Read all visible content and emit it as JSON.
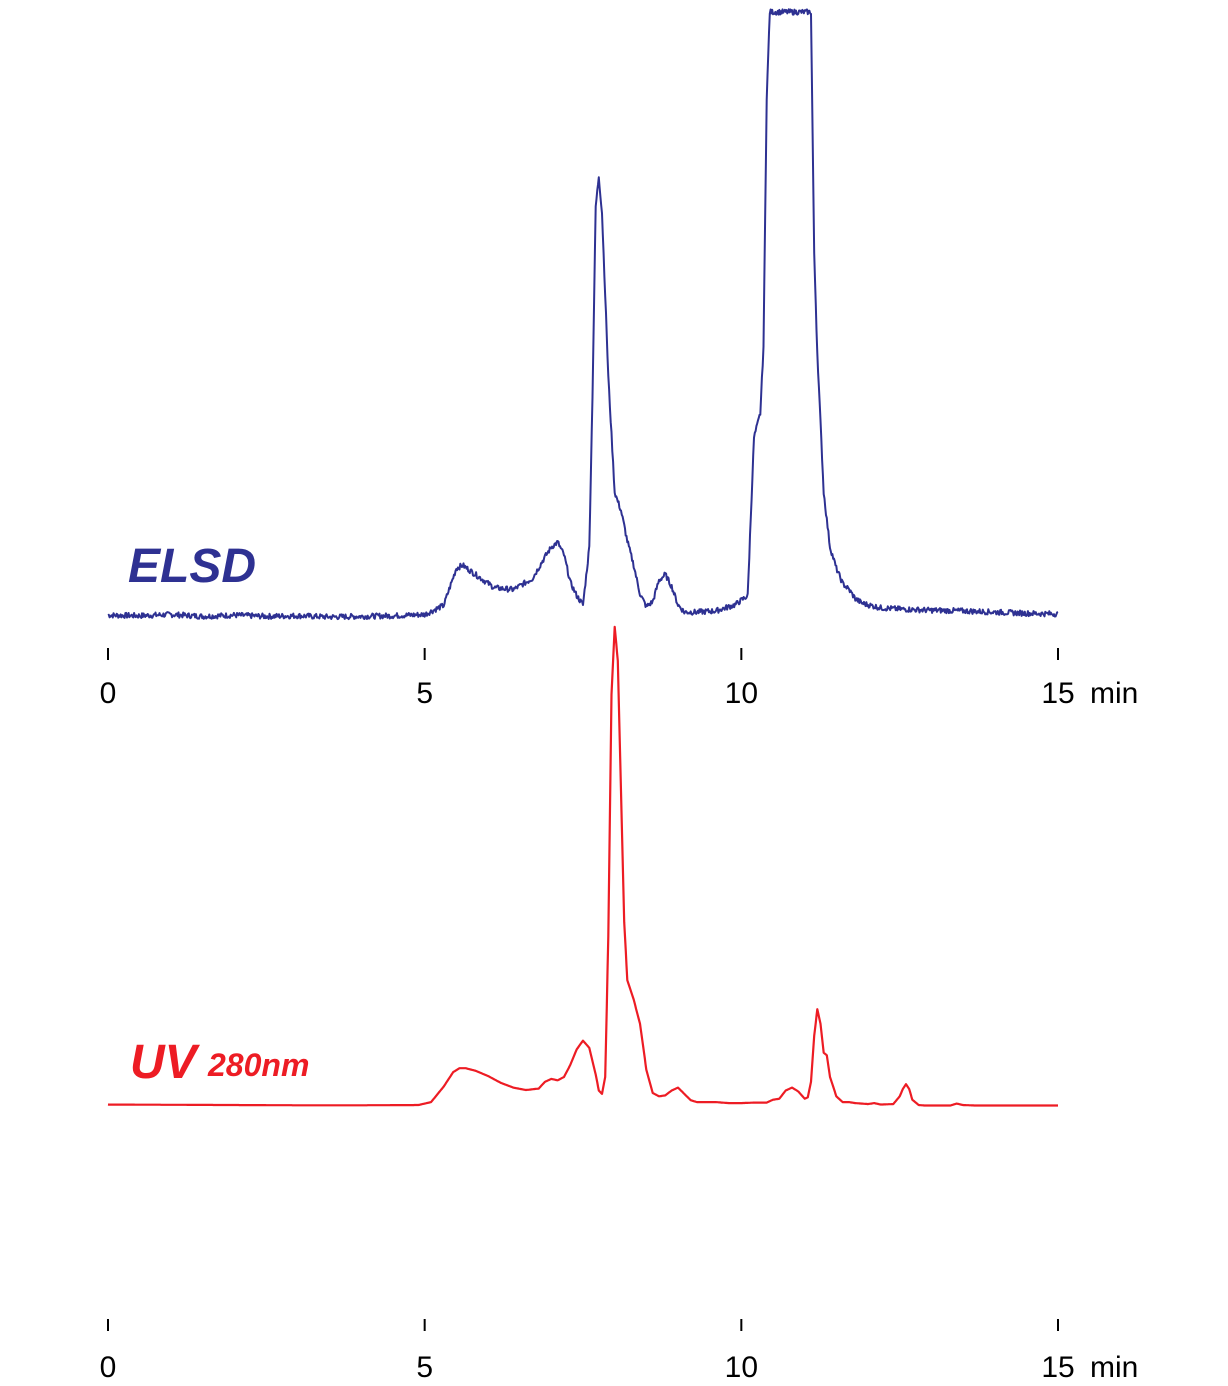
{
  "chart_data": [
    {
      "type": "line",
      "series": [
        {
          "name": "ELSD",
          "color": "#2e3192",
          "x": [
            0,
            0.5,
            1,
            1.5,
            2,
            2.5,
            3,
            3.5,
            4,
            4.5,
            5,
            5.3,
            5.5,
            5.6,
            5.8,
            6.1,
            6.4,
            6.7,
            6.9,
            7.0,
            7.1,
            7.2,
            7.3,
            7.4,
            7.5,
            7.6,
            7.65,
            7.7,
            7.75,
            7.8,
            7.9,
            8.0,
            8.1,
            8.2,
            8.3,
            8.4,
            8.5,
            8.6,
            8.7,
            8.8,
            8.9,
            9.0,
            9.1,
            9.3,
            9.6,
            9.9,
            10.1,
            10.2,
            10.3,
            10.35,
            10.4,
            10.45,
            10.5,
            10.55,
            10.6,
            10.7,
            10.8,
            10.9,
            11.0,
            11.05,
            11.1,
            11.15,
            11.2,
            11.3,
            11.4,
            11.5,
            11.6,
            11.7,
            11.8,
            11.9,
            12.0,
            12.2,
            12.5,
            13.0,
            13.5,
            14.0,
            14.5,
            15.0
          ],
          "values": [
            0.8,
            0.7,
            0.9,
            0.6,
            0.8,
            0.6,
            0.7,
            0.5,
            0.6,
            0.7,
            0.9,
            2.4,
            8.5,
            9.0,
            7.5,
            5.3,
            5.0,
            6.8,
            10.4,
            12.0,
            12.8,
            10.7,
            6.2,
            4.0,
            2.5,
            12.0,
            37.0,
            68.0,
            73.0,
            67.0,
            40.0,
            21.0,
            18.0,
            13.0,
            9.0,
            4.3,
            2.2,
            3.0,
            6.5,
            7.5,
            5.5,
            2.5,
            1.3,
            1.3,
            1.5,
            2.5,
            4.0,
            30.0,
            34.0,
            45.0,
            86.0,
            100.0,
            100.0,
            100.0,
            100.0,
            100.0,
            100.0,
            100.0,
            100.0,
            100.0,
            100.0,
            60.0,
            44.0,
            21.0,
            12.0,
            8.5,
            6.0,
            5.0,
            3.5,
            2.8,
            2.5,
            2.0,
            1.8,
            1.6,
            1.5,
            1.3,
            1.1,
            1.0
          ]
        }
      ],
      "x_ticks": [
        "0",
        "5",
        "10",
        "15"
      ],
      "x_unit": "min",
      "xlim": [
        0,
        15
      ],
      "ylim": [
        0,
        100
      ],
      "grid": false,
      "legend": "none"
    },
    {
      "type": "line",
      "series": [
        {
          "name": "UV",
          "name_sub": "280nm",
          "color": "#ed1c24",
          "x": [
            0,
            1,
            2,
            3,
            4,
            4.9,
            5.1,
            5.3,
            5.45,
            5.55,
            5.65,
            5.8,
            6.0,
            6.2,
            6.4,
            6.6,
            6.8,
            6.9,
            7.0,
            7.1,
            7.2,
            7.3,
            7.4,
            7.5,
            7.6,
            7.7,
            7.75,
            7.8,
            7.85,
            7.9,
            7.95,
            8.0,
            8.05,
            8.1,
            8.15,
            8.2,
            8.3,
            8.4,
            8.5,
            8.6,
            8.7,
            8.8,
            8.9,
            9.0,
            9.1,
            9.2,
            9.3,
            9.4,
            9.6,
            9.8,
            10.0,
            10.2,
            10.4,
            10.5,
            10.6,
            10.7,
            10.8,
            10.9,
            11.0,
            11.05,
            11.1,
            11.15,
            11.2,
            11.25,
            11.3,
            11.35,
            11.4,
            11.5,
            11.6,
            11.7,
            11.8,
            12.0,
            12.1,
            12.2,
            12.4,
            12.5,
            12.55,
            12.6,
            12.65,
            12.7,
            12.8,
            12.9,
            13.0,
            13.1,
            13.3,
            13.4,
            13.5,
            13.7,
            14.0,
            14.5,
            15.0
          ],
          "values": [
            0.3,
            0.25,
            0.2,
            0.15,
            0.15,
            0.2,
            0.8,
            4.0,
            7.0,
            7.8,
            7.8,
            7.3,
            6.2,
            4.8,
            3.8,
            3.3,
            3.6,
            5.0,
            5.6,
            5.3,
            6.0,
            8.5,
            11.7,
            13.5,
            12.0,
            6.5,
            3.2,
            2.5,
            6.0,
            35.0,
            85.0,
            99.0,
            92.0,
            65.0,
            38.0,
            26.0,
            22.0,
            17.0,
            7.5,
            2.7,
            2.0,
            2.2,
            3.2,
            3.8,
            2.5,
            1.2,
            0.8,
            0.8,
            0.8,
            0.6,
            0.6,
            0.7,
            0.7,
            1.3,
            1.5,
            3.2,
            3.8,
            3.0,
            1.5,
            1.8,
            5.0,
            14.5,
            20.0,
            17.0,
            11.0,
            10.5,
            6.0,
            2.0,
            0.8,
            0.8,
            0.6,
            0.4,
            0.6,
            0.3,
            0.4,
            2.0,
            3.5,
            4.5,
            3.5,
            1.3,
            0.2,
            0.1,
            0.1,
            0.1,
            0.1,
            0.5,
            0.2,
            0.1,
            0.1,
            0.1,
            0.1
          ]
        }
      ],
      "x_ticks": [
        "0",
        "5",
        "10",
        "15"
      ],
      "x_unit": "min",
      "xlim": [
        0,
        15
      ],
      "ylim": [
        0,
        100
      ],
      "grid": false,
      "legend": "none"
    }
  ]
}
